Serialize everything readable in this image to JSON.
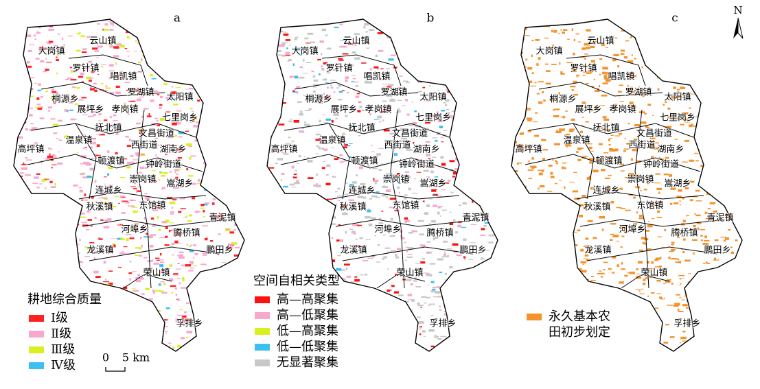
{
  "north": "N",
  "towns": [
    "大岗镇",
    "云山镇",
    "罗针镇",
    "唱凯镇",
    "罗湖镇",
    "太阳镇",
    "桐源乡",
    "展坪乡",
    "孝岗镇",
    "七里岗乡",
    "抚北镇",
    "文昌街道",
    "温泉镇",
    "高坪镇",
    "西街道",
    "湖南乡",
    "顿渡镇",
    "钟岭街道",
    "崇岗镇",
    "嵩湖乡",
    "连城乡",
    "秋溪镇",
    "东馆镇",
    "青泥镇",
    "河埠乡",
    "腾桥镇",
    "龙溪镇",
    "鹏田乡",
    "荣山镇",
    "孚排乡"
  ],
  "panels": [
    {
      "label": "a",
      "legend": {
        "title": "耕地综合质量",
        "items": [
          {
            "label": "Ⅰ级",
            "color": "#ff2020"
          },
          {
            "label": "Ⅱ级",
            "color": "#f7a8cf"
          },
          {
            "label": "Ⅲ级",
            "color": "#d8f020"
          },
          {
            "label": "Ⅳ级",
            "color": "#3cc0f0"
          }
        ]
      }
    },
    {
      "label": "b",
      "legend": {
        "title": "空间自相关类型",
        "items": [
          {
            "label": "高—高聚集",
            "color": "#ff1010"
          },
          {
            "label": "高—低聚集",
            "color": "#f7a8cf"
          },
          {
            "label": "低—高聚集",
            "color": "#d8f020"
          },
          {
            "label": "低—低聚集",
            "color": "#3cc0f0"
          },
          {
            "label": "无显著聚集",
            "color": "#c8c8c8"
          }
        ]
      }
    },
    {
      "label": "c",
      "legend": {
        "items": [
          {
            "label_lines": [
              "永久基本农",
              "田初步划定"
            ],
            "color": "#f5922a"
          }
        ]
      }
    }
  ],
  "scale_bar": {
    "zero": "0",
    "length": "5 km"
  }
}
